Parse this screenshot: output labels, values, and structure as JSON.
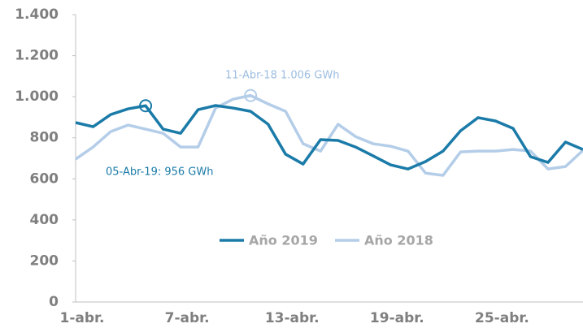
{
  "chart_data": {
    "type": "line",
    "categories": [
      "1-abr.",
      null,
      null,
      null,
      null,
      null,
      "7-abr.",
      null,
      null,
      null,
      null,
      null,
      "13-abr.",
      null,
      null,
      null,
      null,
      null,
      "19-abr.",
      null,
      null,
      null,
      null,
      null,
      "25-abr.",
      null,
      null,
      null,
      null,
      null
    ],
    "series": [
      {
        "name": "Año 2019",
        "color": "#1b7ba8",
        "values": [
          874,
          854,
          913,
          941,
          956,
          842,
          822,
          937,
          957,
          945,
          929,
          866,
          720,
          672,
          791,
          787,
          755,
          712,
          668,
          648,
          684,
          735,
          834,
          898,
          882,
          846,
          708,
          680,
          779,
          743
        ]
      },
      {
        "name": "Año 2018",
        "color": "#b4cde8",
        "values": [
          696,
          755,
          830,
          862,
          842,
          822,
          755,
          755,
          945,
          988,
          1006,
          965,
          929,
          771,
          735,
          866,
          806,
          771,
          759,
          735,
          628,
          617,
          731,
          735,
          735,
          743,
          735,
          648,
          660,
          739
        ]
      }
    ],
    "annotations": [
      "11-Abr-18 1.006 GWh",
      "05-Abr-19: 956 GWh"
    ],
    "ylim": [
      0,
      1400
    ],
    "yticks": [
      0,
      200,
      400,
      600,
      800,
      {
        "value": 1000,
        "label": "1.000"
      },
      {
        "value": 1200,
        "label": "1.200"
      },
      {
        "value": 1400,
        "label": "1.400"
      }
    ],
    "grid": false,
    "legend": "center"
  }
}
